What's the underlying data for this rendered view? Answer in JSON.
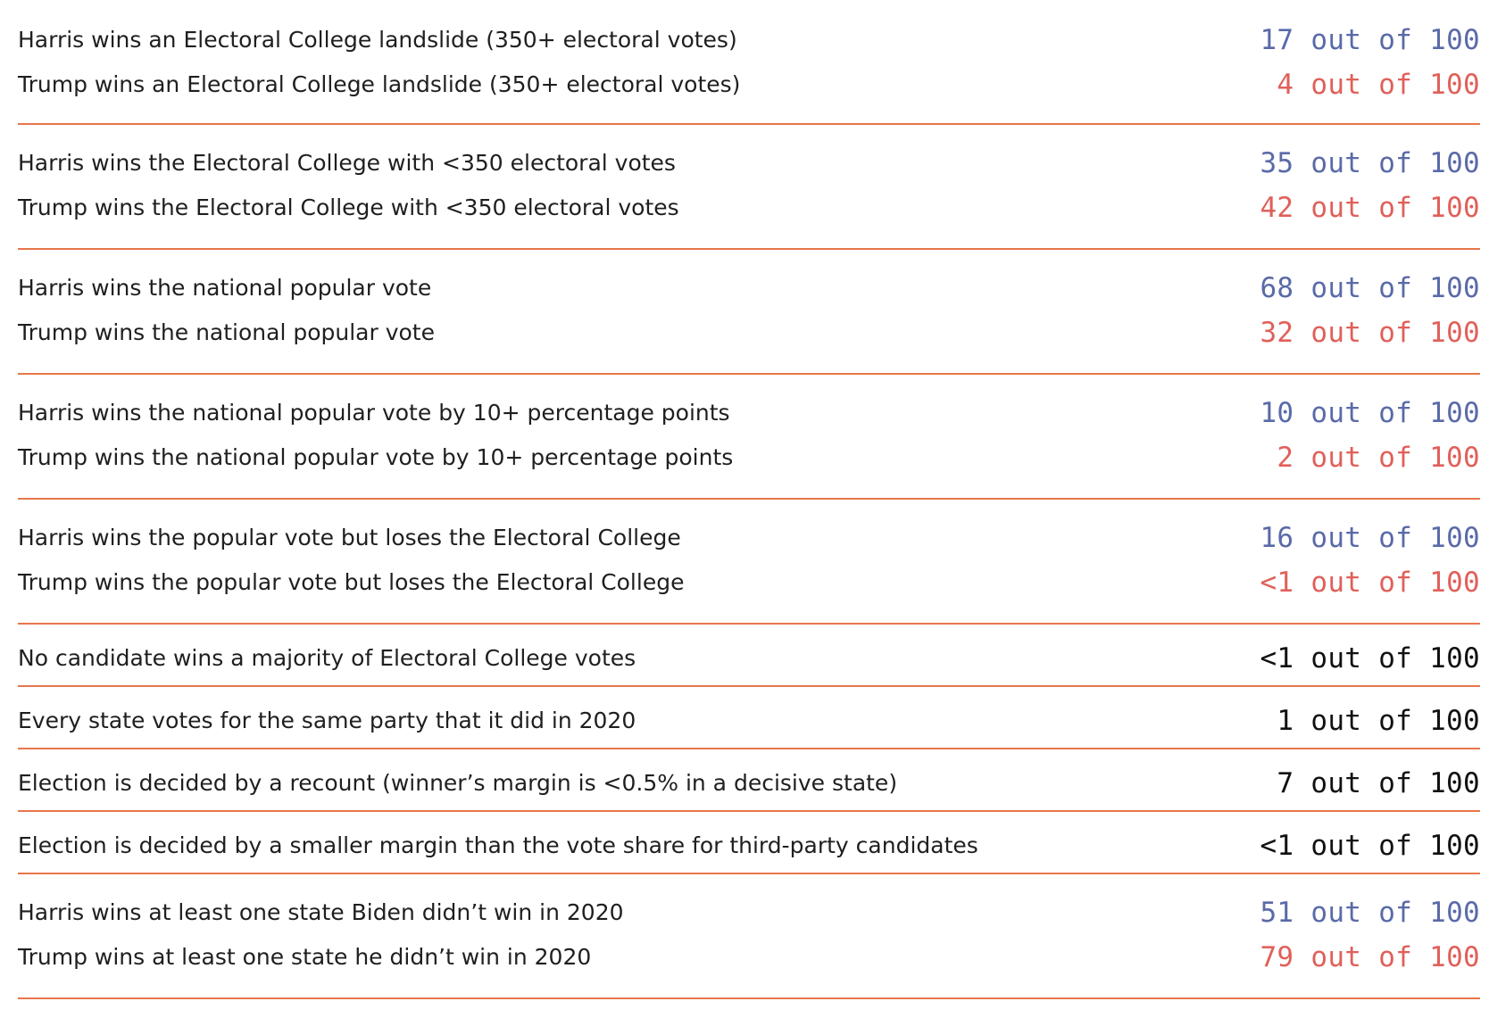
{
  "colors": {
    "divider": "#e8764a",
    "harris": "#5a6aa8",
    "trump": "#e0605a",
    "neutral": "#111111"
  },
  "groups": [
    {
      "rows": [
        {
          "label": "Harris wins an Electoral College landslide (350+ electoral votes)",
          "value": "17 out of 100",
          "party": "harris"
        },
        {
          "label": "Trump wins an Electoral College landslide (350+ electoral votes)",
          "value": "4 out of 100",
          "party": "trump"
        }
      ]
    },
    {
      "rows": [
        {
          "label": "Harris wins the Electoral College with <350 electoral votes",
          "value": "35 out of 100",
          "party": "harris"
        },
        {
          "label": "Trump wins the Electoral College with <350 electoral votes",
          "value": "42 out of 100",
          "party": "trump"
        }
      ]
    },
    {
      "rows": [
        {
          "label": "Harris wins the national popular vote",
          "value": "68 out of 100",
          "party": "harris"
        },
        {
          "label": "Trump wins the national popular vote",
          "value": "32 out of 100",
          "party": "trump"
        }
      ]
    },
    {
      "rows": [
        {
          "label": "Harris wins the national popular vote by 10+ percentage points",
          "value": "10 out of 100",
          "party": "harris"
        },
        {
          "label": "Trump wins the national popular vote by 10+ percentage points",
          "value": "2 out of 100",
          "party": "trump"
        }
      ]
    },
    {
      "rows": [
        {
          "label": "Harris wins the popular vote but loses the Electoral College",
          "value": "16 out of 100",
          "party": "harris"
        },
        {
          "label": "Trump wins the popular vote but loses the Electoral College",
          "value": "<1 out of 100",
          "party": "trump"
        }
      ]
    },
    {
      "rows": [
        {
          "label": "No candidate wins a majority of Electoral College votes",
          "value": "<1 out of 100",
          "party": "neutral"
        }
      ]
    },
    {
      "rows": [
        {
          "label": "Every state votes for the same party that it did in 2020",
          "value": "1 out of 100",
          "party": "neutral"
        }
      ]
    },
    {
      "rows": [
        {
          "label": "Election is decided by a recount (winner’s margin is <0.5% in a decisive state)",
          "value": "7 out of 100",
          "party": "neutral"
        }
      ]
    },
    {
      "rows": [
        {
          "label": "Election is decided by a smaller margin than the vote share for third-party candidates",
          "value": "<1 out of 100",
          "party": "neutral"
        }
      ]
    },
    {
      "rows": [
        {
          "label": "Harris wins at least one state Biden didn’t win in 2020",
          "value": "51 out of 100",
          "party": "harris"
        },
        {
          "label": "Trump wins at least one state he didn’t win in 2020",
          "value": "79 out of 100",
          "party": "trump"
        }
      ]
    }
  ]
}
